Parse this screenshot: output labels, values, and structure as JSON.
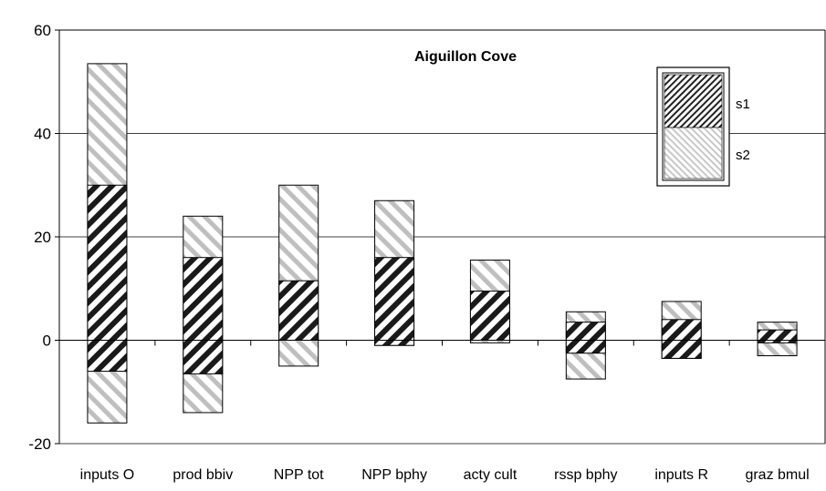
{
  "chart_data": {
    "type": "bar",
    "title": "Aiguillon Cove",
    "xlabel": "",
    "ylabel": "",
    "ylim": [
      -20,
      60
    ],
    "yticks": [
      -20,
      0,
      20,
      40,
      60
    ],
    "grid": true,
    "legend_position": "top-right",
    "categories": [
      "inputs O",
      "prod bbiv",
      "NPP tot",
      "NPP bphy",
      "acty cult",
      "rssp bphy",
      "inputs R",
      "graz bmul"
    ],
    "series": [
      {
        "name": "s1",
        "pattern": "dense dark diagonal hatch",
        "ranges": [
          [
            -6,
            30
          ],
          [
            -6.5,
            16
          ],
          [
            0,
            11.5
          ],
          [
            -1,
            16
          ],
          [
            0,
            9.5
          ],
          [
            -2.5,
            3.5
          ],
          [
            -3.5,
            4
          ],
          [
            -0.5,
            2
          ]
        ]
      },
      {
        "name": "s2",
        "pattern": "light grey diagonal hatch",
        "ranges": [
          [
            -16,
            53.5
          ],
          [
            -14,
            24
          ],
          [
            -5,
            30
          ],
          [
            -1,
            27
          ],
          [
            -0.5,
            15.5
          ],
          [
            -7.5,
            5.5
          ],
          [
            -3.5,
            7.5
          ],
          [
            -3,
            3.5
          ]
        ]
      }
    ],
    "colors": {
      "s1_stripe": "#1a1a1a",
      "s2_stripe": "#bfbfbf",
      "axis": "#000000",
      "grid": "#000000"
    }
  }
}
